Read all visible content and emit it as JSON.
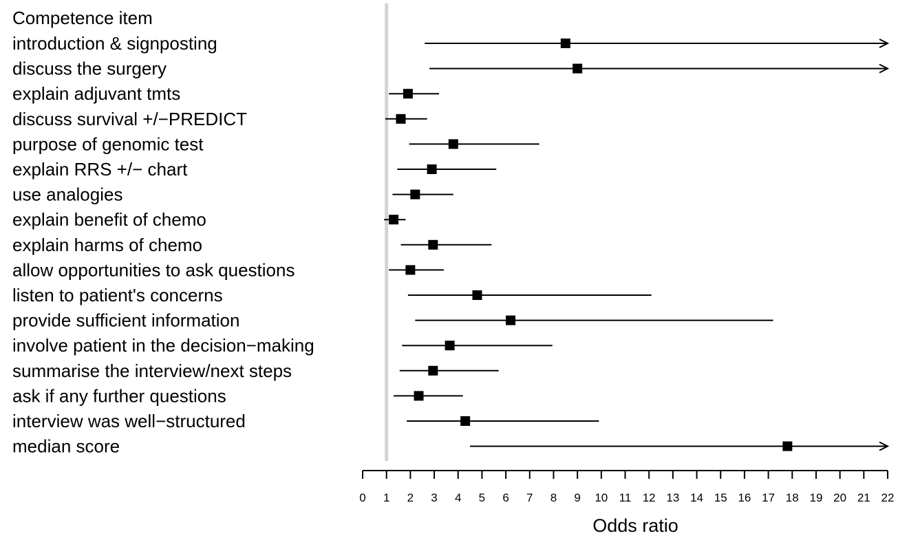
{
  "chart_data": {
    "type": "forest",
    "column_header": "Competence item",
    "xlabel": "Odds ratio",
    "xlim": [
      0,
      22
    ],
    "x_ticks": [
      0,
      1,
      2,
      3,
      4,
      5,
      6,
      7,
      8,
      9,
      10,
      11,
      12,
      13,
      14,
      15,
      16,
      17,
      18,
      19,
      20,
      21,
      22
    ],
    "reference_line": 1,
    "rows": [
      {
        "label": "introduction & signposting",
        "or": 8.5,
        "lower": 2.6,
        "upper": 22,
        "upper_truncated": true
      },
      {
        "label": "discuss the surgery",
        "or": 9.0,
        "lower": 2.8,
        "upper": 22,
        "upper_truncated": true
      },
      {
        "label": "explain adjuvant tmts",
        "or": 1.9,
        "lower": 1.1,
        "upper": 3.2,
        "upper_truncated": false
      },
      {
        "label": "discuss  survival +/−PREDICT",
        "or": 1.6,
        "lower": 0.95,
        "upper": 2.7,
        "upper_truncated": false
      },
      {
        "label": "purpose of genomic test",
        "or": 3.8,
        "lower": 1.95,
        "upper": 7.4,
        "upper_truncated": false
      },
      {
        "label": "explain RRS +/− chart",
        "or": 2.9,
        "lower": 1.45,
        "upper": 5.6,
        "upper_truncated": false
      },
      {
        "label": "use analogies",
        "or": 2.2,
        "lower": 1.25,
        "upper": 3.8,
        "upper_truncated": false
      },
      {
        "label": "explain benefit of  chemo",
        "or": 1.3,
        "lower": 0.9,
        "upper": 1.8,
        "upper_truncated": false
      },
      {
        "label": "explain harms of chemo",
        "or": 2.95,
        "lower": 1.6,
        "upper": 5.4,
        "upper_truncated": false
      },
      {
        "label": "allow opportunities to ask questions",
        "or": 2.0,
        "lower": 1.1,
        "upper": 3.4,
        "upper_truncated": false
      },
      {
        "label": "listen to  patient's concerns",
        "or": 4.8,
        "lower": 1.9,
        "upper": 12.1,
        "upper_truncated": false
      },
      {
        "label": "provide sufficient information",
        "or": 6.2,
        "lower": 2.2,
        "upper": 17.2,
        "upper_truncated": false
      },
      {
        "label": "involve patient in the decision−making",
        "or": 3.65,
        "lower": 1.65,
        "upper": 7.95,
        "upper_truncated": false
      },
      {
        "label": "summarise the interview/next steps",
        "or": 2.95,
        "lower": 1.55,
        "upper": 5.7,
        "upper_truncated": false
      },
      {
        "label": "ask if any further questions",
        "or": 2.35,
        "lower": 1.3,
        "upper": 4.2,
        "upper_truncated": false
      },
      {
        "label": "interview was well−structured",
        "or": 4.3,
        "lower": 1.85,
        "upper": 9.9,
        "upper_truncated": false
      },
      {
        "label": "median score",
        "or": 17.8,
        "lower": 4.5,
        "upper": 22,
        "upper_truncated": true
      }
    ],
    "colors": {
      "marker": "#000000",
      "line": "#000000",
      "reference_line": "#d3d3d3"
    }
  }
}
